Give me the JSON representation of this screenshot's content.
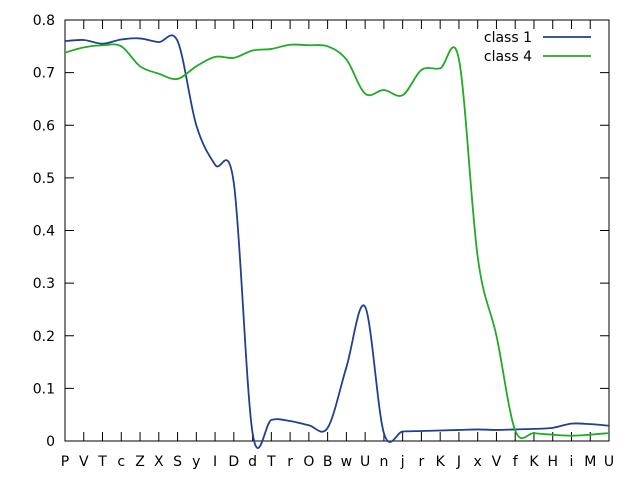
{
  "chart_data": {
    "type": "line",
    "categories": [
      "P",
      "V",
      "T",
      "c",
      "Z",
      "X",
      "S",
      "y",
      "I",
      "D",
      "d",
      "T",
      "r",
      "O",
      "B",
      "w",
      "U",
      "n",
      "j",
      "r",
      "K",
      "J",
      "x",
      "V",
      "f",
      "K",
      "H",
      "i",
      "M",
      "U"
    ],
    "ylim": [
      0,
      0.8
    ],
    "yticks": [
      0,
      0.1,
      0.2,
      0.3,
      0.4,
      0.5,
      0.6,
      0.7,
      0.8
    ],
    "ytick_labels": [
      "0",
      "0.1",
      "0.2",
      "0.3",
      "0.4",
      "0.5",
      "0.6",
      "0.7",
      "0.8"
    ],
    "grid": false,
    "legend_position": "top-right",
    "series": [
      {
        "name": "class 1",
        "color": "#1f3f8f",
        "values": [
          0.76,
          0.762,
          0.755,
          0.763,
          0.765,
          0.758,
          0.76,
          0.6,
          0.525,
          0.49,
          0.015,
          0.04,
          0.038,
          0.03,
          0.025,
          0.14,
          0.255,
          0.015,
          0.018,
          0.019,
          0.02,
          0.021,
          0.022,
          0.021,
          0.022,
          0.023,
          0.025,
          0.033,
          0.032,
          0.029
        ]
      },
      {
        "name": "class 4",
        "color": "#22aa22",
        "values": [
          0.738,
          0.748,
          0.752,
          0.75,
          0.712,
          0.698,
          0.688,
          0.712,
          0.73,
          0.728,
          0.742,
          0.745,
          0.753,
          0.752,
          0.75,
          0.725,
          0.66,
          0.667,
          0.657,
          0.705,
          0.708,
          0.725,
          0.35,
          0.2,
          0.02,
          0.015,
          0.012,
          0.01,
          0.012,
          0.015
        ]
      }
    ]
  }
}
